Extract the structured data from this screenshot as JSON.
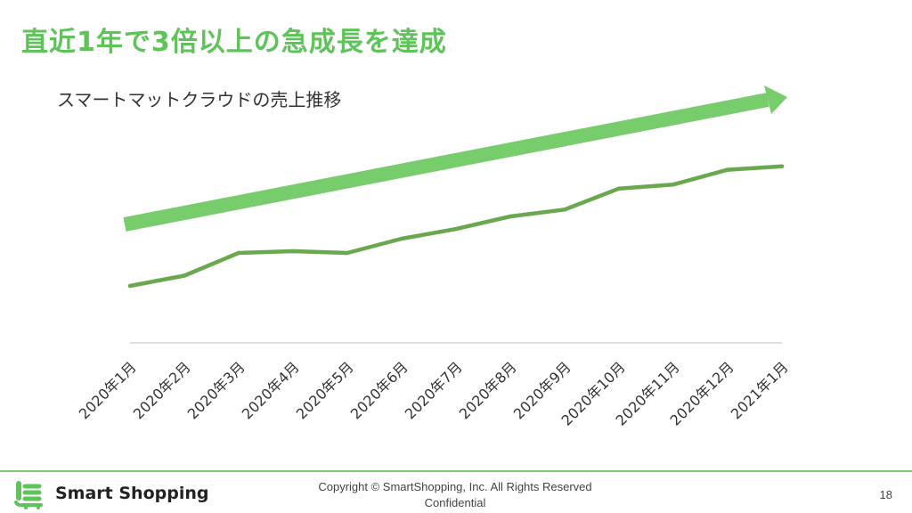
{
  "slide": {
    "title": "直近1年で3倍以上の急成長を達成"
  },
  "colors": {
    "accent": "#5ec45a",
    "line": "#6aa84f",
    "arrow": "#77cc6c",
    "axis": "#bfbfbf"
  },
  "chart_data": {
    "type": "line",
    "title": "スマートマットクラウドの売上推移",
    "categories": [
      "2020年1月",
      "2020年2月",
      "2020年3月",
      "2020年4月",
      "2020年5月",
      "2020年6月",
      "2020年7月",
      "2020年8月",
      "2020年9月",
      "2020年10月",
      "2020年11月",
      "2020年12月",
      "2021年1月"
    ],
    "series": [
      {
        "values": [
          1.0,
          1.18,
          1.58,
          1.61,
          1.58,
          1.83,
          2.0,
          2.22,
          2.34,
          2.71,
          2.78,
          3.04,
          3.1
        ]
      }
    ],
    "ylim": [
      0,
      4.3
    ],
    "y_axis_labels": false,
    "grid": false,
    "legend": "none",
    "trend_arrow": true
  },
  "footer": {
    "brand": "Smart Shopping",
    "copyright_line1": "Copyright © SmartShopping, Inc. All Rights Reserved",
    "copyright_line2": "Confidential",
    "page_number": "18"
  }
}
